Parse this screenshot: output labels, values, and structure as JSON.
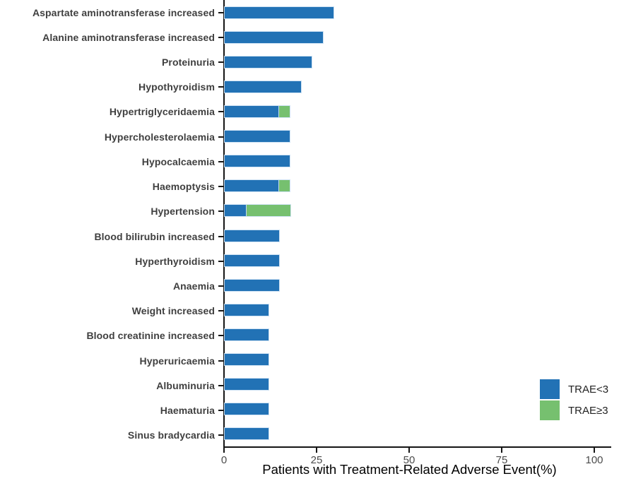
{
  "chart_data": {
    "type": "bar",
    "orientation": "horizontal",
    "stacked": true,
    "title": "",
    "xlabel": "Patients with Treatment-Related Adverse Event(%)",
    "ylabel": "",
    "xticks": [
      0,
      25,
      50,
      75,
      100
    ],
    "xlim": [
      0,
      104
    ],
    "grid": false,
    "legend_position": "right-bottom",
    "categories": [
      "Aspartate aminotransferase increased",
      "Alanine aminotransferase increased",
      "Proteinuria",
      "Hypothyroidism",
      "Hypertriglyceridaemia",
      "Hypercholesterolaemia",
      "Hypocalcaemia",
      "Haemoptysis",
      "Hypertension",
      "Blood bilirubin increased",
      "Hyperthyroidism",
      "Anaemia",
      "Weight increased",
      "Blood creatinine increased",
      "Hyperuricaemia",
      "Albuminuria",
      "Haematuria",
      "Sinus bradycardia"
    ],
    "series": [
      {
        "name": "TRAE<3",
        "color": "#2272b5",
        "values": [
          29.4,
          26.5,
          23.5,
          20.6,
          14.7,
          17.6,
          17.6,
          14.7,
          5.9,
          14.7,
          14.7,
          14.7,
          11.8,
          11.8,
          11.8,
          11.8,
          11.8,
          11.8
        ]
      },
      {
        "name": "TRAE≥3",
        "color": "#76c06f",
        "values": [
          0,
          0,
          0,
          0,
          2.9,
          0,
          0,
          2.9,
          11.8,
          0,
          0,
          0,
          0,
          0,
          0,
          0,
          0,
          0
        ]
      }
    ],
    "axis_color": "#151515",
    "tick_label_color": "#4c4c4c",
    "category_label_color": "#3f3f3f"
  }
}
